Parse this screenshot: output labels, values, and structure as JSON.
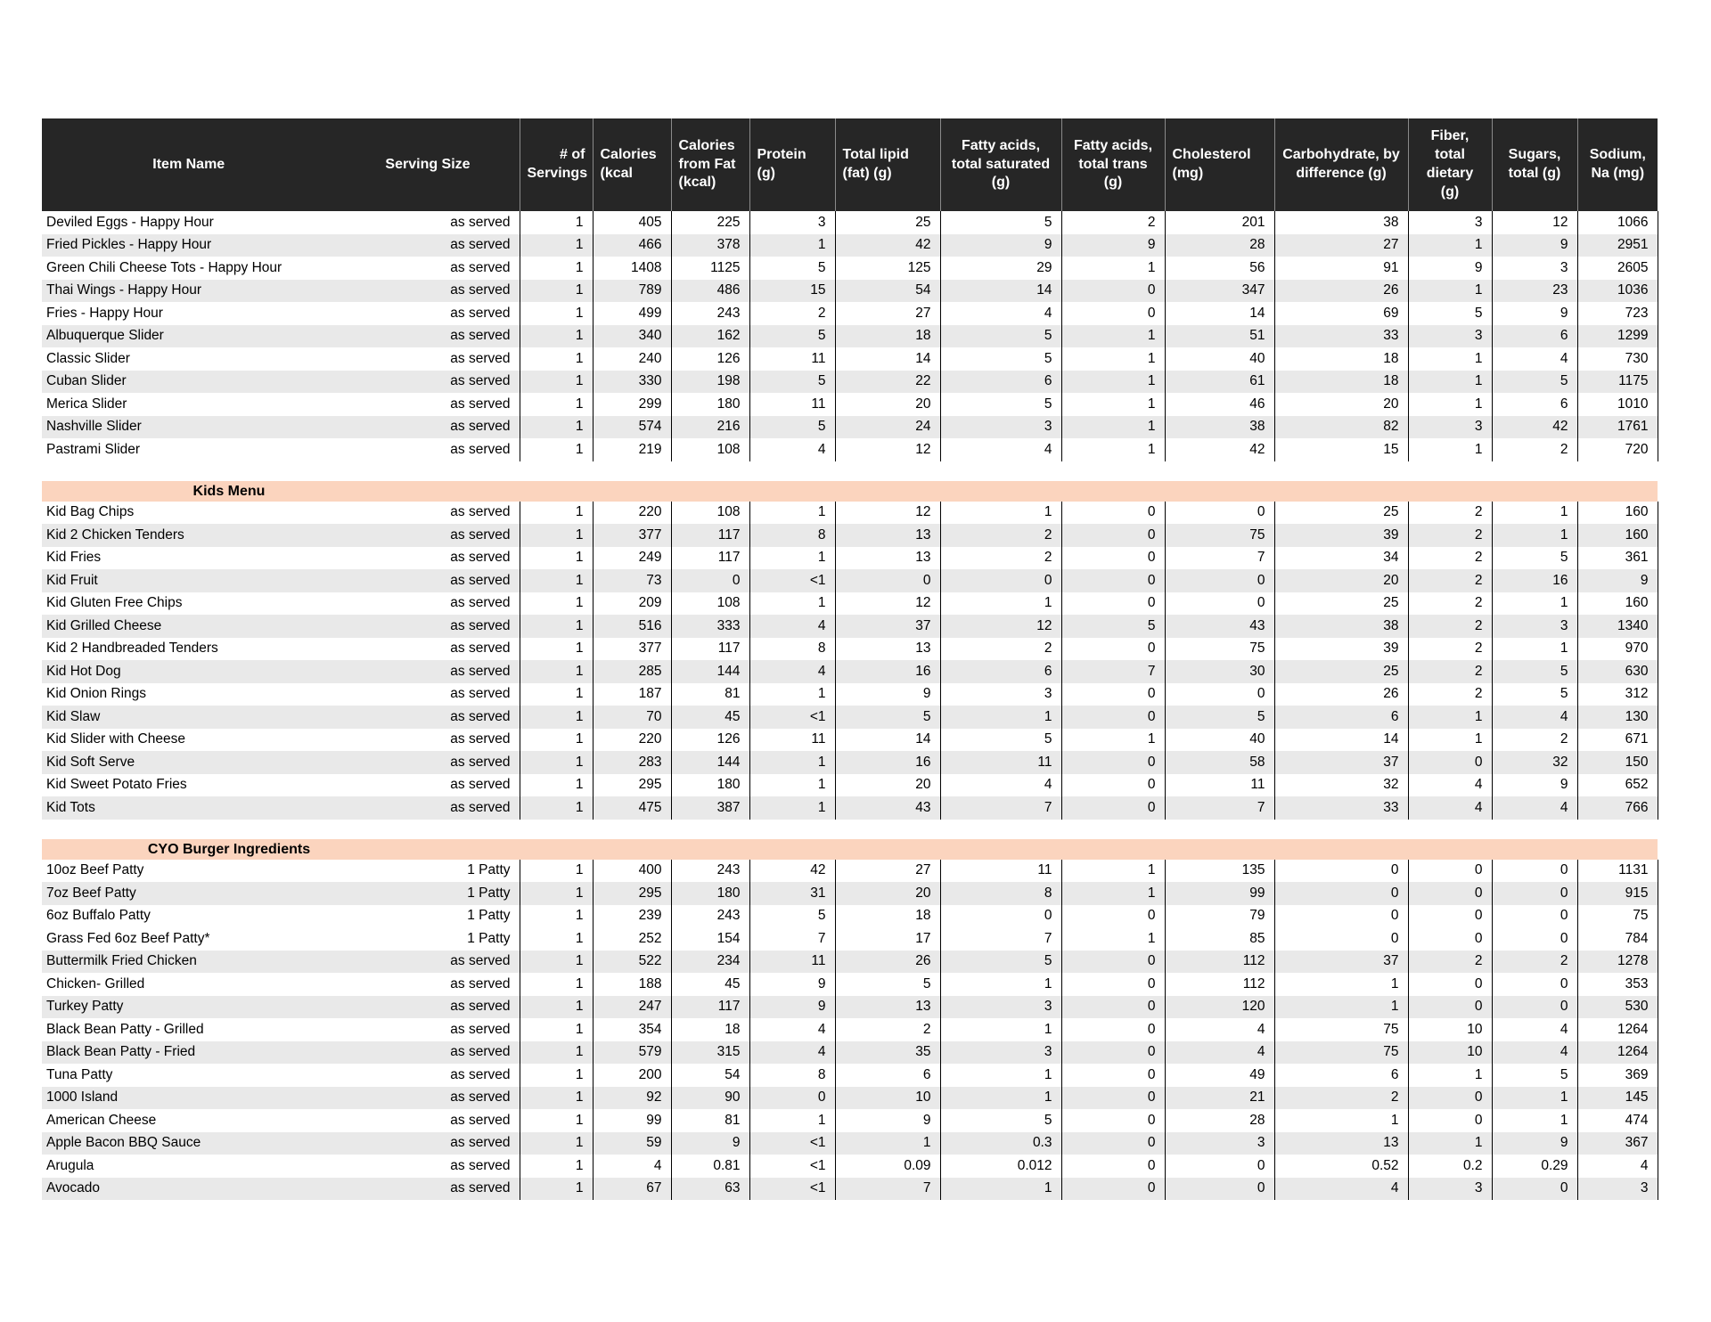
{
  "colors": {
    "header_bg": "#262626",
    "header_separator": "#8a8a8a",
    "row_stripe": "#e9e9e9",
    "section_band": "#fbd4be",
    "grid_line": "#000000"
  },
  "table": {
    "columns": [
      "Item Name",
      "Serving Size",
      "# of Servings",
      "Calories (kcal",
      "Calories from Fat (kcal)",
      "Protein (g)",
      "Total lipid (fat) (g)",
      "Fatty acids, total saturated (g)",
      "Fatty acids, total trans (g)",
      "Cholesterol (mg)",
      "Carbohydrate, by difference (g)",
      "Fiber, total dietary (g)",
      "Sugars, total (g)",
      "Sodium, Na (mg)"
    ],
    "sections": [
      {
        "title": null,
        "rows": [
          {
            "name": "Deviled Eggs - Happy Hour",
            "serving": "as served",
            "values": [
              "1",
              "405",
              "225",
              "3",
              "25",
              "5",
              "2",
              "201",
              "38",
              "3",
              "12",
              "1066"
            ],
            "shaded": false
          },
          {
            "name": "Fried Pickles - Happy Hour",
            "serving": "as served",
            "values": [
              "1",
              "466",
              "378",
              "1",
              "42",
              "9",
              "9",
              "28",
              "27",
              "1",
              "9",
              "2951"
            ],
            "shaded": true
          },
          {
            "name": "Green Chili Cheese Tots - Happy Hour",
            "serving": "as served",
            "values": [
              "1",
              "1408",
              "1125",
              "5",
              "125",
              "29",
              "1",
              "56",
              "91",
              "9",
              "3",
              "2605"
            ],
            "shaded": false
          },
          {
            "name": "Thai Wings - Happy Hour",
            "serving": "as served",
            "values": [
              "1",
              "789",
              "486",
              "15",
              "54",
              "14",
              "0",
              "347",
              "26",
              "1",
              "23",
              "1036"
            ],
            "shaded": true
          },
          {
            "name": "Fries - Happy Hour",
            "serving": "as served",
            "values": [
              "1",
              "499",
              "243",
              "2",
              "27",
              "4",
              "0",
              "14",
              "69",
              "5",
              "9",
              "723"
            ],
            "shaded": false
          },
          {
            "name": "Albuquerque Slider",
            "serving": "as served",
            "values": [
              "1",
              "340",
              "162",
              "5",
              "18",
              "5",
              "1",
              "51",
              "33",
              "3",
              "6",
              "1299"
            ],
            "shaded": true
          },
          {
            "name": "Classic Slider",
            "serving": "as served",
            "values": [
              "1",
              "240",
              "126",
              "11",
              "14",
              "5",
              "1",
              "40",
              "18",
              "1",
              "4",
              "730"
            ],
            "shaded": false
          },
          {
            "name": "Cuban Slider",
            "serving": "as served",
            "values": [
              "1",
              "330",
              "198",
              "5",
              "22",
              "6",
              "1",
              "61",
              "18",
              "1",
              "5",
              "1175"
            ],
            "shaded": true
          },
          {
            "name": "Merica Slider",
            "serving": "as served",
            "values": [
              "1",
              "299",
              "180",
              "11",
              "20",
              "5",
              "1",
              "46",
              "20",
              "1",
              "6",
              "1010"
            ],
            "shaded": false
          },
          {
            "name": "Nashville Slider",
            "serving": "as served",
            "values": [
              "1",
              "574",
              "216",
              "5",
              "24",
              "3",
              "1",
              "38",
              "82",
              "3",
              "42",
              "1761"
            ],
            "shaded": true
          },
          {
            "name": "Pastrami Slider",
            "serving": "as served",
            "values": [
              "1",
              "219",
              "108",
              "4",
              "12",
              "4",
              "1",
              "42",
              "15",
              "1",
              "2",
              "720"
            ],
            "shaded": false
          }
        ]
      },
      {
        "title": "Kids Menu",
        "rows": [
          {
            "name": "Kid Bag Chips",
            "serving": "as served",
            "values": [
              "1",
              "220",
              "108",
              "1",
              "12",
              "1",
              "0",
              "0",
              "25",
              "2",
              "1",
              "160"
            ],
            "shaded": false
          },
          {
            "name": "Kid 2 Chicken Tenders",
            "serving": "as served",
            "values": [
              "1",
              "377",
              "117",
              "8",
              "13",
              "2",
              "0",
              "75",
              "39",
              "2",
              "1",
              "160"
            ],
            "shaded": true
          },
          {
            "name": "Kid Fries",
            "serving": "as served",
            "values": [
              "1",
              "249",
              "117",
              "1",
              "13",
              "2",
              "0",
              "7",
              "34",
              "2",
              "5",
              "361"
            ],
            "shaded": false
          },
          {
            "name": "Kid Fruit",
            "serving": "as served",
            "values": [
              "1",
              "73",
              "0",
              "<1",
              "0",
              "0",
              "0",
              "0",
              "20",
              "2",
              "16",
              "9"
            ],
            "shaded": true
          },
          {
            "name": "Kid Gluten Free Chips",
            "serving": "as served",
            "values": [
              "1",
              "209",
              "108",
              "1",
              "12",
              "1",
              "0",
              "0",
              "25",
              "2",
              "1",
              "160"
            ],
            "shaded": false
          },
          {
            "name": "Kid Grilled Cheese",
            "serving": "as served",
            "values": [
              "1",
              "516",
              "333",
              "4",
              "37",
              "12",
              "5",
              "43",
              "38",
              "2",
              "3",
              "1340"
            ],
            "shaded": true
          },
          {
            "name": "Kid 2 Handbreaded Tenders",
            "serving": "as served",
            "values": [
              "1",
              "377",
              "117",
              "8",
              "13",
              "2",
              "0",
              "75",
              "39",
              "2",
              "1",
              "970"
            ],
            "shaded": false
          },
          {
            "name": "Kid Hot Dog",
            "serving": "as served",
            "values": [
              "1",
              "285",
              "144",
              "4",
              "16",
              "6",
              "7",
              "30",
              "25",
              "2",
              "5",
              "630"
            ],
            "shaded": true
          },
          {
            "name": "Kid Onion Rings",
            "serving": "as served",
            "values": [
              "1",
              "187",
              "81",
              "1",
              "9",
              "3",
              "0",
              "0",
              "26",
              "2",
              "5",
              "312"
            ],
            "shaded": false
          },
          {
            "name": "Kid Slaw",
            "serving": "as served",
            "values": [
              "1",
              "70",
              "45",
              "<1",
              "5",
              "1",
              "0",
              "5",
              "6",
              "1",
              "4",
              "130"
            ],
            "shaded": true
          },
          {
            "name": "Kid Slider with Cheese",
            "serving": "as served",
            "values": [
              "1",
              "220",
              "126",
              "11",
              "14",
              "5",
              "1",
              "40",
              "14",
              "1",
              "2",
              "671"
            ],
            "shaded": false
          },
          {
            "name": "Kid Soft Serve",
            "serving": "as served",
            "values": [
              "1",
              "283",
              "144",
              "1",
              "16",
              "11",
              "0",
              "58",
              "37",
              "0",
              "32",
              "150"
            ],
            "shaded": true
          },
          {
            "name": "Kid Sweet Potato Fries",
            "serving": "as served",
            "values": [
              "1",
              "295",
              "180",
              "1",
              "20",
              "4",
              "0",
              "11",
              "32",
              "4",
              "9",
              "652"
            ],
            "shaded": false
          },
          {
            "name": "Kid Tots",
            "serving": "as served",
            "values": [
              "1",
              "475",
              "387",
              "1",
              "43",
              "7",
              "0",
              "7",
              "33",
              "4",
              "4",
              "766"
            ],
            "shaded": true
          }
        ]
      },
      {
        "title": "CYO Burger Ingredients",
        "rows": [
          {
            "name": "10oz Beef Patty",
            "serving": "1 Patty",
            "values": [
              "1",
              "400",
              "243",
              "42",
              "27",
              "11",
              "1",
              "135",
              "0",
              "0",
              "0",
              "1131"
            ],
            "shaded": false
          },
          {
            "name": "7oz Beef Patty",
            "serving": "1 Patty",
            "values": [
              "1",
              "295",
              "180",
              "31",
              "20",
              "8",
              "1",
              "99",
              "0",
              "0",
              "0",
              "915"
            ],
            "shaded": true
          },
          {
            "name": "6oz Buffalo Patty",
            "serving": "1 Patty",
            "values": [
              "1",
              "239",
              "243",
              "5",
              "18",
              "0",
              "0",
              "79",
              "0",
              "0",
              "0",
              "75"
            ],
            "shaded": false
          },
          {
            "name": "Grass Fed 6oz Beef Patty*",
            "serving": "1 Patty",
            "values": [
              "1",
              "252",
              "154",
              "7",
              "17",
              "7",
              "1",
              "85",
              "0",
              "0",
              "0",
              "784"
            ],
            "shaded": false,
            "caret": true
          },
          {
            "name": "Buttermilk Fried Chicken",
            "serving": "as served",
            "values": [
              "1",
              "522",
              "234",
              "11",
              "26",
              "5",
              "0",
              "112",
              "37",
              "2",
              "2",
              "1278"
            ],
            "shaded": true
          },
          {
            "name": "Chicken- Grilled",
            "serving": "as served",
            "values": [
              "1",
              "188",
              "45",
              "9",
              "5",
              "1",
              "0",
              "112",
              "1",
              "0",
              "0",
              "353"
            ],
            "shaded": false
          },
          {
            "name": "Turkey Patty",
            "serving": "as served",
            "values": [
              "1",
              "247",
              "117",
              "9",
              "13",
              "3",
              "0",
              "120",
              "1",
              "0",
              "0",
              "530"
            ],
            "shaded": true
          },
          {
            "name": "Black Bean Patty - Grilled",
            "serving": "as served",
            "values": [
              "1",
              "354",
              "18",
              "4",
              "2",
              "1",
              "0",
              "4",
              "75",
              "10",
              "4",
              "1264"
            ],
            "shaded": false
          },
          {
            "name": "Black Bean Patty - Fried",
            "serving": "as served",
            "values": [
              "1",
              "579",
              "315",
              "4",
              "35",
              "3",
              "0",
              "4",
              "75",
              "10",
              "4",
              "1264"
            ],
            "shaded": true
          },
          {
            "name": "Tuna Patty",
            "serving": "as served",
            "values": [
              "1",
              "200",
              "54",
              "8",
              "6",
              "1",
              "0",
              "49",
              "6",
              "1",
              "5",
              "369"
            ],
            "shaded": false
          },
          {
            "name": "1000 Island",
            "serving": "as served",
            "values": [
              "1",
              "92",
              "90",
              "0",
              "10",
              "1",
              "0",
              "21",
              "2",
              "0",
              "1",
              "145"
            ],
            "shaded": true
          },
          {
            "name": "American Cheese",
            "serving": "as served",
            "values": [
              "1",
              "99",
              "81",
              "1",
              "9",
              "5",
              "0",
              "28",
              "1",
              "0",
              "1",
              "474"
            ],
            "shaded": false
          },
          {
            "name": "Apple Bacon BBQ Sauce",
            "serving": "as served",
            "values": [
              "1",
              "59",
              "9",
              "<1",
              "1",
              "0.3",
              "0",
              "3",
              "13",
              "1",
              "9",
              "367"
            ],
            "shaded": true
          },
          {
            "name": "Arugula",
            "serving": "as served",
            "values": [
              "1",
              "4",
              "0.81",
              "<1",
              "0.09",
              "0.012",
              "0",
              "0",
              "0.52",
              "0.2",
              "0.29",
              "4"
            ],
            "shaded": false
          },
          {
            "name": "Avocado",
            "serving": "as served",
            "values": [
              "1",
              "67",
              "63",
              "<1",
              "7",
              "1",
              "0",
              "0",
              "4",
              "3",
              "0",
              "3"
            ],
            "shaded": true
          }
        ]
      }
    ]
  }
}
